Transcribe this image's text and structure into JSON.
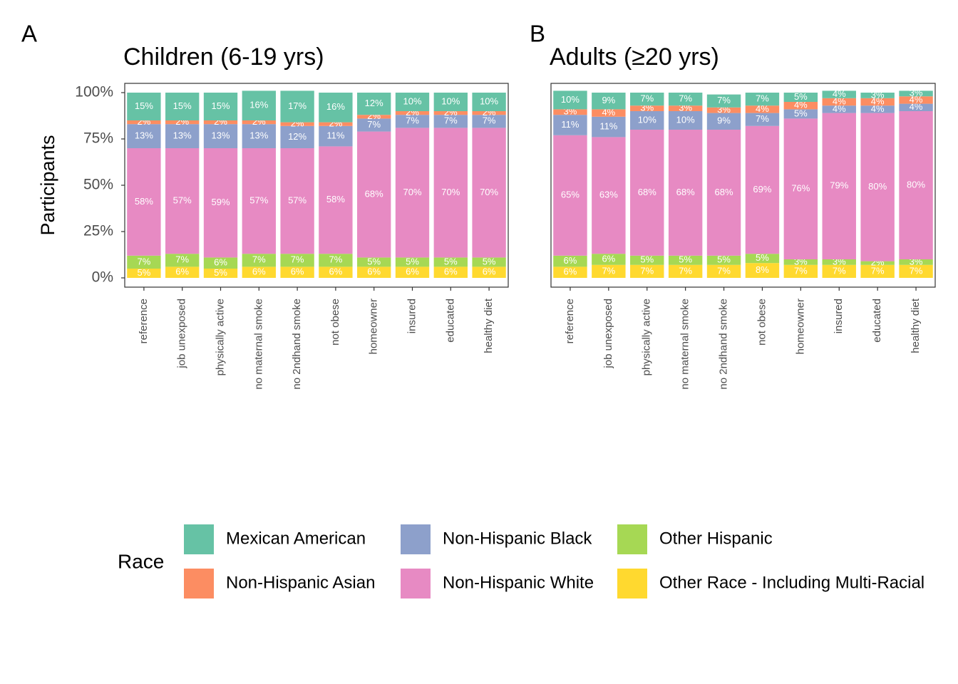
{
  "legend": {
    "title": "Race",
    "position": "bottom"
  },
  "chart_data": [
    {
      "type": "stacked_bar",
      "tag": "A",
      "title": "Children (6-19 yrs)",
      "ylabel": "Participants",
      "categories": [
        "reference",
        "job unexposed",
        "physically active",
        "no maternal smoke",
        "no 2ndhand smoke",
        "not obese",
        "homeowner",
        "insured",
        "educated",
        "healthy diet"
      ],
      "ylim": [
        -5,
        105
      ],
      "yticks": [
        {
          "value": 0,
          "label": "0%"
        },
        {
          "value": 25,
          "label": "25%"
        },
        {
          "value": 50,
          "label": "50%"
        },
        {
          "value": 75,
          "label": "75%"
        },
        {
          "value": 100,
          "label": "100%"
        }
      ],
      "series": [
        {
          "name": "Mexican American",
          "color": "#66c2a5",
          "values": [
            15,
            15,
            15,
            16,
            17,
            16,
            12,
            10,
            10,
            10
          ],
          "value_labels": [
            "15%",
            "15%",
            "15%",
            "16%",
            "17%",
            "16%",
            "12%",
            "10%",
            "10%",
            "10%"
          ]
        },
        {
          "name": "Non-Hispanic Asian",
          "color": "#fc8d62",
          "values": [
            2,
            2,
            2,
            2,
            2,
            2,
            2,
            2,
            2,
            2
          ],
          "value_labels": [
            "2%",
            "2%",
            "2%",
            "2%",
            "2%",
            "2%",
            "2%",
            "2%",
            "2%",
            "2%"
          ]
        },
        {
          "name": "Non-Hispanic Black",
          "color": "#8da0cb",
          "values": [
            13,
            13,
            13,
            13,
            12,
            11,
            7,
            7,
            7,
            7
          ],
          "value_labels": [
            "13%",
            "13%",
            "13%",
            "13%",
            "12%",
            "11%",
            "7%",
            "7%",
            "7%",
            "7%"
          ]
        },
        {
          "name": "Non-Hispanic White",
          "color": "#e78ac3",
          "values": [
            58,
            57,
            59,
            57,
            57,
            58,
            68,
            70,
            70,
            70
          ],
          "value_labels": [
            "58%",
            "57%",
            "59%",
            "57%",
            "57%",
            "58%",
            "68%",
            "70%",
            "70%",
            "70%"
          ]
        },
        {
          "name": "Other Hispanic",
          "color": "#a6d854",
          "values": [
            7,
            7,
            6,
            7,
            7,
            7,
            5,
            5,
            5,
            5
          ],
          "value_labels": [
            "7%",
            "7%",
            "6%",
            "7%",
            "7%",
            "7%",
            "5%",
            "5%",
            "5%",
            "5%"
          ]
        },
        {
          "name": "Other Race - Including Multi-Racial",
          "color": "#ffd92f",
          "values": [
            5,
            6,
            5,
            6,
            6,
            6,
            6,
            6,
            6,
            6
          ],
          "value_labels": [
            "5%",
            "6%",
            "5%",
            "6%",
            "6%",
            "6%",
            "6%",
            "6%",
            "6%",
            "6%"
          ]
        }
      ]
    },
    {
      "type": "stacked_bar",
      "tag": "B",
      "title": "Adults (≥20 yrs)",
      "categories": [
        "reference",
        "job unexposed",
        "physically active",
        "no maternal smoke",
        "no 2ndhand smoke",
        "not obese",
        "homeowner",
        "insured",
        "educated",
        "healthy diet"
      ],
      "ylim": [
        -5,
        105
      ],
      "series": [
        {
          "name": "Mexican American",
          "color": "#66c2a5",
          "values": [
            10,
            9,
            7,
            7,
            7,
            7,
            5,
            4,
            3,
            3
          ],
          "value_labels": [
            "10%",
            "9%",
            "7%",
            "7%",
            "7%",
            "7%",
            "5%",
            "4%",
            "3%",
            "3%"
          ]
        },
        {
          "name": "Non-Hispanic Asian",
          "color": "#fc8d62",
          "values": [
            3,
            4,
            3,
            3,
            3,
            4,
            4,
            4,
            4,
            4
          ],
          "value_labels": [
            "3%",
            "4%",
            "3%",
            "3%",
            "3%",
            "4%",
            "4%",
            "4%",
            "4%",
            "4%"
          ]
        },
        {
          "name": "Non-Hispanic Black",
          "color": "#8da0cb",
          "values": [
            11,
            11,
            10,
            10,
            9,
            7,
            5,
            4,
            4,
            4
          ],
          "value_labels": [
            "11%",
            "11%",
            "10%",
            "10%",
            "9%",
            "7%",
            "5%",
            "4%",
            "4%",
            "4%"
          ]
        },
        {
          "name": "Non-Hispanic White",
          "color": "#e78ac3",
          "values": [
            65,
            63,
            68,
            68,
            68,
            69,
            76,
            79,
            80,
            80
          ],
          "value_labels": [
            "65%",
            "63%",
            "68%",
            "68%",
            "68%",
            "69%",
            "76%",
            "79%",
            "80%",
            "80%"
          ]
        },
        {
          "name": "Other Hispanic",
          "color": "#a6d854",
          "values": [
            6,
            6,
            5,
            5,
            5,
            5,
            3,
            3,
            2,
            3
          ],
          "value_labels": [
            "6%",
            "6%",
            "5%",
            "5%",
            "5%",
            "5%",
            "3%",
            "3%",
            "2%",
            "3%"
          ]
        },
        {
          "name": "Other Race - Including Multi-Racial",
          "color": "#ffd92f",
          "values": [
            6,
            7,
            7,
            7,
            7,
            8,
            7,
            7,
            7,
            7
          ],
          "value_labels": [
            "6%",
            "7%",
            "7%",
            "7%",
            "7%",
            "8%",
            "7%",
            "7%",
            "7%",
            "7%"
          ]
        }
      ]
    }
  ]
}
